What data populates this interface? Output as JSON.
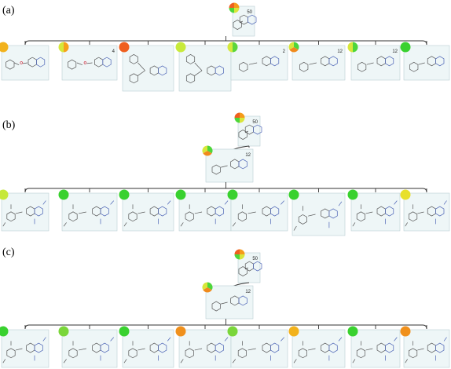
{
  "panels": [
    {
      "label": "(a)",
      "root": {
        "count": "50",
        "pie": [
          "#f59b1a",
          "#d9e53a",
          "#4dd63a",
          "#ef5f1f"
        ]
      },
      "children": [
        {
          "count": "",
          "pie": [
            "#f2b21c"
          ]
        },
        {
          "count": "4",
          "pie": [
            "#f6a21c",
            "#d5e83c"
          ]
        },
        {
          "count": "",
          "pie": [
            "#ef5f1f"
          ]
        },
        {
          "count": "",
          "pie": [
            "#c8ea3a"
          ]
        },
        {
          "count": "2",
          "pie": [
            "#5cd63c",
            "#d6e83c"
          ]
        },
        {
          "count": "12",
          "pie": [
            "#4dd63a",
            "#f08a1c",
            "#d8e63a"
          ]
        },
        {
          "count": "12",
          "pie": [
            "#4dd63a",
            "#d8e63a"
          ]
        },
        {
          "count": "",
          "pie": [
            "#39d12f"
          ]
        }
      ]
    },
    {
      "label": "(b)",
      "root": {
        "count": "50",
        "pie": [
          "#f59b1a",
          "#d9e53a",
          "#4dd63a",
          "#ef5f1f"
        ]
      },
      "mid": {
        "count": "12",
        "pie": [
          "#4dd63a",
          "#f08a1c",
          "#d8e63a"
        ]
      },
      "children": [
        {
          "pie": [
            "#c6e83a"
          ]
        },
        {
          "pie": [
            "#39d12f"
          ]
        },
        {
          "pie": [
            "#39d12f"
          ]
        },
        {
          "pie": [
            "#39d12f"
          ]
        },
        {
          "pie": [
            "#39d12f"
          ]
        },
        {
          "pie": [
            "#39d12f"
          ]
        },
        {
          "pie": [
            "#39d12f"
          ]
        },
        {
          "pie": [
            "#e8e02a"
          ]
        }
      ]
    },
    {
      "label": "(c)",
      "root": {
        "count": "50",
        "pie": [
          "#f59b1a",
          "#d9e53a",
          "#4dd63a",
          "#ef5f1f"
        ]
      },
      "mid": {
        "count": "12",
        "pie": [
          "#4dd63a",
          "#f08a1c",
          "#d8e63a"
        ]
      },
      "children": [
        {
          "pie": [
            "#39d12f"
          ]
        },
        {
          "pie": [
            "#7ad63a"
          ]
        },
        {
          "pie": [
            "#39d12f"
          ]
        },
        {
          "pie": [
            "#f0901c"
          ]
        },
        {
          "pie": [
            "#7ad63a"
          ]
        },
        {
          "pie": [
            "#f2b21c"
          ]
        },
        {
          "pie": [
            "#39d12f"
          ]
        },
        {
          "pie": [
            "#f0901c"
          ]
        }
      ]
    }
  ]
}
